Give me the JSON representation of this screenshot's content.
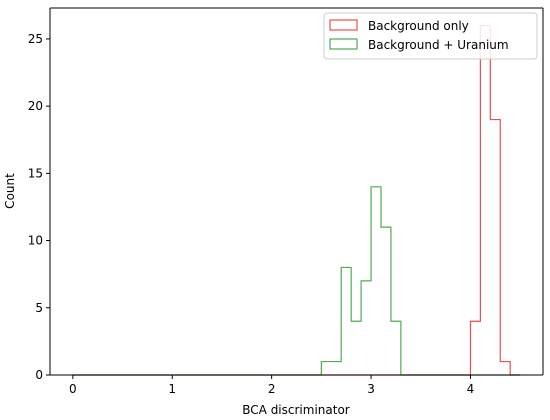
{
  "chart_data": {
    "type": "step-histogram",
    "xlabel": "BCA discriminator",
    "ylabel": "Count",
    "xlim": [
      -0.23,
      4.73
    ],
    "ylim": [
      0,
      27.3
    ],
    "xticks": [
      0,
      1,
      2,
      3,
      4
    ],
    "xtick_labels": [
      "0",
      "1",
      "2",
      "3",
      "4"
    ],
    "yticks": [
      0,
      5,
      10,
      15,
      20,
      25
    ],
    "ytick_labels": [
      "0",
      "5",
      "10",
      "15",
      "20",
      "25"
    ],
    "bin_edges": [
      0,
      0.1,
      0.2,
      0.3,
      0.4,
      0.5,
      0.6,
      0.7,
      0.8,
      0.9,
      1.0,
      1.1,
      1.2,
      1.3,
      1.4,
      1.5,
      1.6,
      1.7,
      1.8,
      1.9,
      2.0,
      2.1,
      2.2,
      2.3,
      2.4,
      2.5,
      2.6,
      2.7,
      2.8,
      2.9,
      3.0,
      3.1,
      3.2,
      3.3,
      3.4,
      3.5,
      3.6,
      3.7,
      3.8,
      3.9,
      4.0,
      4.1,
      4.2,
      4.3,
      4.4,
      4.5
    ],
    "legend_position": "top-right",
    "series": [
      {
        "name": "Background only",
        "color": "#e8504f",
        "counts": [
          0,
          0,
          0,
          0,
          0,
          0,
          0,
          0,
          0,
          0,
          0,
          0,
          0,
          0,
          0,
          0,
          0,
          0,
          0,
          0,
          0,
          0,
          0,
          0,
          0,
          0,
          0,
          0,
          0,
          0,
          0,
          0,
          0,
          0,
          0,
          0,
          0,
          0,
          0,
          0,
          4,
          26,
          19,
          1,
          0
        ]
      },
      {
        "name": "Background + Uranium",
        "color": "#55a856",
        "counts": [
          0,
          0,
          0,
          0,
          0,
          0,
          0,
          0,
          0,
          0,
          0,
          0,
          0,
          0,
          0,
          0,
          0,
          0,
          0,
          0,
          0,
          0,
          0,
          0,
          0,
          1,
          1,
          8,
          4,
          7,
          14,
          11,
          4,
          0,
          0,
          0,
          0,
          0,
          0,
          0,
          0,
          0,
          0,
          0,
          0
        ]
      }
    ]
  }
}
